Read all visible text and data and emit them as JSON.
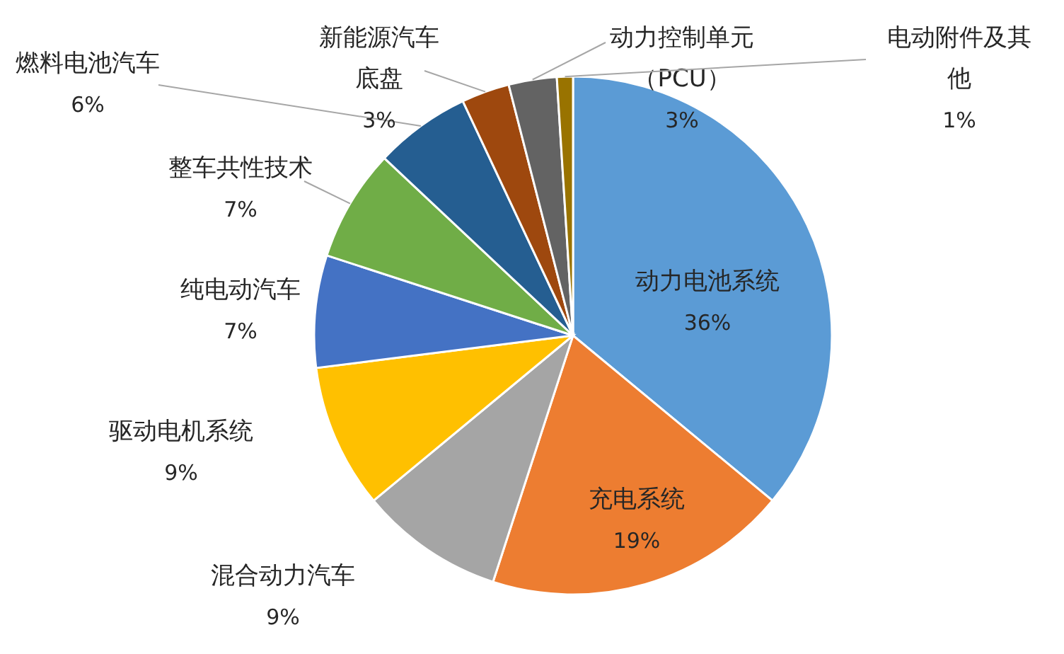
{
  "chart_data": {
    "type": "pie",
    "categories": [
      "动力电池系统",
      "充电系统",
      "混合动力汽车",
      "驱动电机系统",
      "纯电动汽车",
      "整车共性技术",
      "燃料电池汽车",
      "新能源汽车底盘",
      "动力控制单元（PCU）",
      "电动附件及其他"
    ],
    "values": [
      36,
      19,
      9,
      9,
      7,
      7,
      6,
      3,
      3,
      1
    ],
    "value_labels": [
      "36%",
      "19%",
      "9%",
      "9%",
      "7%",
      "7%",
      "6%",
      "3%",
      "3%",
      "1%"
    ],
    "colors": [
      "#5b9bd5",
      "#ed7d31",
      "#a5a5a5",
      "#ffc000",
      "#4472c4",
      "#70ad47",
      "#255e91",
      "#9e480e",
      "#636363",
      "#997300"
    ]
  }
}
